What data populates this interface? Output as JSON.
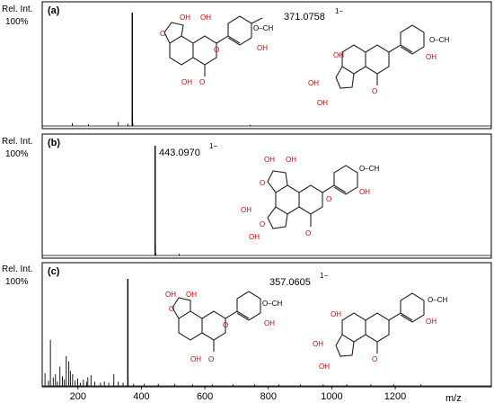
{
  "chart_data": [
    {
      "type": "bar",
      "panel_label": "(a)",
      "ylabel_line1": "Rel. Int.",
      "ylabel_line2": "100%",
      "xlim": [
        90,
        1500
      ],
      "ylim": [
        0,
        100
      ],
      "main_peak": {
        "x": 371.0758,
        "y": 100,
        "label": "371.0758",
        "charge": "1−"
      },
      "peaks": [
        {
          "x": 182,
          "y": 2.5
        },
        {
          "x": 233,
          "y": 1.5
        },
        {
          "x": 327,
          "y": 3.5
        },
        {
          "x": 357,
          "y": 2.0
        },
        {
          "x": 371.0758,
          "y": 100
        },
        {
          "x": 372,
          "y": 9.0
        },
        {
          "x": 373,
          "y": 2.5
        },
        {
          "x": 743,
          "y": 1.0
        }
      ]
    },
    {
      "type": "bar",
      "panel_label": "(b)",
      "ylabel_line1": "Rel. Int.",
      "ylabel_line2": "100%",
      "xlim": [
        90,
        1500
      ],
      "ylim": [
        0,
        100
      ],
      "main_peak": {
        "x": 443.097,
        "y": 100,
        "label": "443.0970",
        "charge": "1−"
      },
      "peaks": [
        {
          "x": 443.097,
          "y": 100
        },
        {
          "x": 444,
          "y": 10.0
        },
        {
          "x": 445,
          "y": 2.5
        },
        {
          "x": 519,
          "y": 1.5
        }
      ]
    },
    {
      "type": "bar",
      "panel_label": "(c)",
      "ylabel_line1": "Rel. Int.",
      "ylabel_line2": "100%",
      "xlim": [
        90,
        1500
      ],
      "ylim": [
        0,
        100
      ],
      "xlabel": "m/z",
      "xticks": [
        200,
        400,
        600,
        800,
        1000,
        1200
      ],
      "main_peak": {
        "x": 357.0605,
        "y": 100,
        "label": "357.0605",
        "charge": "1−"
      },
      "peaks": [
        {
          "x": 96,
          "y": 12
        },
        {
          "x": 107,
          "y": 5
        },
        {
          "x": 113,
          "y": 43
        },
        {
          "x": 122,
          "y": 8
        },
        {
          "x": 129,
          "y": 11
        },
        {
          "x": 135,
          "y": 4
        },
        {
          "x": 143,
          "y": 18
        },
        {
          "x": 151,
          "y": 9
        },
        {
          "x": 157,
          "y": 6
        },
        {
          "x": 163,
          "y": 28
        },
        {
          "x": 171,
          "y": 23
        },
        {
          "x": 176,
          "y": 14
        },
        {
          "x": 183,
          "y": 11
        },
        {
          "x": 191,
          "y": 5
        },
        {
          "x": 199,
          "y": 7
        },
        {
          "x": 207,
          "y": 3
        },
        {
          "x": 217,
          "y": 6
        },
        {
          "x": 227,
          "y": 4
        },
        {
          "x": 231,
          "y": 8
        },
        {
          "x": 241,
          "y": 10
        },
        {
          "x": 253,
          "y": 4
        },
        {
          "x": 271,
          "y": 3
        },
        {
          "x": 283,
          "y": 4
        },
        {
          "x": 297,
          "y": 3
        },
        {
          "x": 313,
          "y": 11
        },
        {
          "x": 327,
          "y": 4
        },
        {
          "x": 342,
          "y": 3
        },
        {
          "x": 357.0605,
          "y": 100
        },
        {
          "x": 358,
          "y": 9
        },
        {
          "x": 375,
          "y": 2
        },
        {
          "x": 409,
          "y": 2
        },
        {
          "x": 453,
          "y": 2
        },
        {
          "x": 505,
          "y": 2
        },
        {
          "x": 561,
          "y": 1.5
        },
        {
          "x": 623,
          "y": 1.5
        },
        {
          "x": 689,
          "y": 1.5
        },
        {
          "x": 757,
          "y": 1.5
        },
        {
          "x": 833,
          "y": 1.5
        },
        {
          "x": 901,
          "y": 1.5
        },
        {
          "x": 973,
          "y": 1.5
        },
        {
          "x": 1047,
          "y": 1.5
        },
        {
          "x": 1123,
          "y": 1.5
        },
        {
          "x": 1195,
          "y": 1.5
        },
        {
          "x": 1281,
          "y": 1.5
        }
      ]
    }
  ],
  "molecule_atoms": {
    "oh": "OH",
    "o": "O",
    "h": "H",
    "och3": "O–CH",
    "ch3": "CH",
    "methoxy": "O–CH"
  },
  "colors": {
    "oxygen": "#e00000",
    "bond": "#222222",
    "frame": "#000000"
  }
}
